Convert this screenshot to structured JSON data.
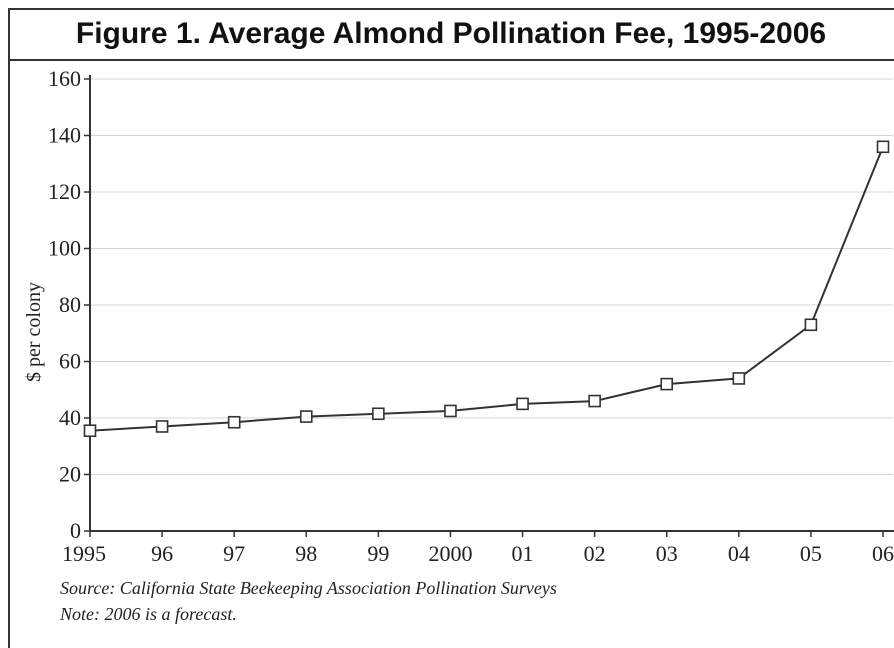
{
  "chart_data": {
    "type": "line",
    "title": "Figure 1. Average Almond Pollination Fee, 1995-2006",
    "ylabel": "$ per colony",
    "xlabel": "",
    "x_tick_labels": [
      "1995",
      "96",
      "97",
      "98",
      "99",
      "2000",
      "01",
      "02",
      "03",
      "04",
      "05",
      "06"
    ],
    "y_tick_labels": [
      "0",
      "20",
      "40",
      "60",
      "80",
      "100",
      "120",
      "140",
      "160"
    ],
    "ylim": [
      0,
      160
    ],
    "grid": true,
    "marker": "hollow-square",
    "series": [
      {
        "values": [
          35.5,
          37,
          38.5,
          40.5,
          41.5,
          42.5,
          45,
          46,
          52,
          54,
          73,
          136
        ]
      }
    ],
    "colors": {
      "line": "#333333",
      "grid": "#d4d4d4",
      "axis": "#333333",
      "marker_fill": "#ffffff"
    }
  },
  "notes": {
    "source": "Source: California State Beekeeping Association Pollination Surveys",
    "note": "Note: 2006 is a forecast."
  }
}
